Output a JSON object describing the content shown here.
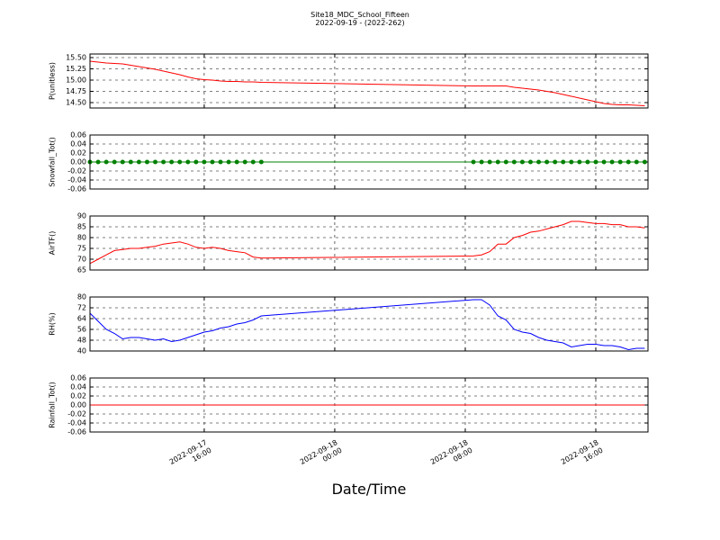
{
  "title": "Site18_MDC_School_Fifteen",
  "subtitle": "2022-09-19 - (2022-262)",
  "xlabel": "Date/Time",
  "xlim": [
    "2022-09-17 09:00",
    "2022-09-18 19:12"
  ],
  "xticks": [
    "2022-09-17 16:00",
    "2022-09-18 00:00",
    "2022-09-18 08:00",
    "2022-09-18 16:00"
  ],
  "chart_data": [
    {
      "type": "line",
      "ylabel": "P(unitless)",
      "ylim": [
        14.38,
        15.58
      ],
      "yticks": [
        {
          "value": 15.5,
          "label": "15.50"
        },
        15.25,
        {
          "value": 15,
          "label": "15.00"
        },
        14.75,
        {
          "value": 14.5,
          "label": "14.50"
        }
      ],
      "grid": true,
      "x": [
        "2022-09-17 09:00",
        "2022-09-17 09:30",
        "2022-09-17 10:00",
        "2022-09-17 10:30",
        "2022-09-17 11:00",
        "2022-09-17 11:30",
        "2022-09-17 12:00",
        "2022-09-17 12:30",
        "2022-09-17 13:00",
        "2022-09-17 13:30",
        "2022-09-17 14:00",
        "2022-09-17 14:30",
        "2022-09-17 15:00",
        "2022-09-17 15:30",
        "2022-09-17 16:00",
        "2022-09-17 16:30",
        "2022-09-17 17:00",
        "2022-09-17 17:30",
        "2022-09-17 18:00",
        "2022-09-17 18:30",
        "2022-09-17 19:00",
        "2022-09-17 19:30",
        "2022-09-18 08:30",
        "2022-09-18 09:00",
        "2022-09-18 09:30",
        "2022-09-18 10:00",
        "2022-09-18 10:30",
        "2022-09-18 11:00",
        "2022-09-18 11:30",
        "2022-09-18 12:00",
        "2022-09-18 12:30",
        "2022-09-18 13:00",
        "2022-09-18 13:30",
        "2022-09-18 14:00",
        "2022-09-18 14:30",
        "2022-09-18 15:00",
        "2022-09-18 15:30",
        "2022-09-18 16:00",
        "2022-09-18 16:30",
        "2022-09-18 17:00",
        "2022-09-18 17:30",
        "2022-09-18 18:00",
        "2022-09-18 18:30",
        "2022-09-18 19:00"
      ],
      "series": [
        {
          "color": "#ff0000",
          "marker": false,
          "values": [
            15.42,
            15.4,
            15.38,
            15.37,
            15.36,
            15.33,
            15.3,
            15.27,
            15.24,
            15.2,
            15.16,
            15.12,
            15.07,
            15.03,
            15.01,
            15.0,
            14.98,
            14.97,
            14.97,
            14.96,
            14.96,
            14.95,
            14.87,
            14.87,
            14.87,
            14.87,
            14.87,
            14.84,
            14.82,
            14.8,
            14.78,
            14.75,
            14.72,
            14.68,
            14.64,
            14.6,
            14.56,
            14.52,
            14.48,
            14.46,
            14.45,
            14.45,
            14.44,
            14.43
          ]
        }
      ]
    },
    {
      "type": "line",
      "ylabel": "Snowfall_Tot()",
      "ylim": [
        -0.06,
        0.06
      ],
      "yticks": [
        0.06,
        0.04,
        0.02,
        {
          "value": 0,
          "label": "0.00"
        },
        -0.02,
        -0.04,
        -0.06
      ],
      "grid": true,
      "x": [
        "2022-09-17 09:00",
        "2022-09-17 09:30",
        "2022-09-17 10:00",
        "2022-09-17 10:30",
        "2022-09-17 11:00",
        "2022-09-17 11:30",
        "2022-09-17 12:00",
        "2022-09-17 12:30",
        "2022-09-17 13:00",
        "2022-09-17 13:30",
        "2022-09-17 14:00",
        "2022-09-17 14:30",
        "2022-09-17 15:00",
        "2022-09-17 15:30",
        "2022-09-17 16:00",
        "2022-09-17 16:30",
        "2022-09-17 17:00",
        "2022-09-17 17:30",
        "2022-09-17 18:00",
        "2022-09-17 18:30",
        "2022-09-17 19:00",
        "2022-09-17 19:30",
        "2022-09-18 08:30",
        "2022-09-18 09:00",
        "2022-09-18 09:30",
        "2022-09-18 10:00",
        "2022-09-18 10:30",
        "2022-09-18 11:00",
        "2022-09-18 11:30",
        "2022-09-18 12:00",
        "2022-09-18 12:30",
        "2022-09-18 13:00",
        "2022-09-18 13:30",
        "2022-09-18 14:00",
        "2022-09-18 14:30",
        "2022-09-18 15:00",
        "2022-09-18 15:30",
        "2022-09-18 16:00",
        "2022-09-18 16:30",
        "2022-09-18 17:00",
        "2022-09-18 17:30",
        "2022-09-18 18:00",
        "2022-09-18 18:30",
        "2022-09-18 19:00"
      ],
      "series": [
        {
          "color": "#008000",
          "marker": true,
          "values": [
            0,
            0,
            0,
            0,
            0,
            0,
            0,
            0,
            0,
            0,
            0,
            0,
            0,
            0,
            0,
            0,
            0,
            0,
            0,
            0,
            0,
            0,
            0,
            0,
            0,
            0,
            0,
            0,
            0,
            0,
            0,
            0,
            0,
            0,
            0,
            0,
            0,
            0,
            0,
            0,
            0,
            0,
            0,
            0
          ]
        }
      ]
    },
    {
      "type": "line",
      "ylabel": "AirTF()",
      "ylim": [
        65,
        90
      ],
      "yticks": [
        90,
        85,
        80,
        75,
        70,
        65
      ],
      "grid": true,
      "x": [
        "2022-09-17 09:00",
        "2022-09-17 09:30",
        "2022-09-17 10:00",
        "2022-09-17 10:30",
        "2022-09-17 11:00",
        "2022-09-17 11:30",
        "2022-09-17 12:00",
        "2022-09-17 12:30",
        "2022-09-17 13:00",
        "2022-09-17 13:30",
        "2022-09-17 14:00",
        "2022-09-17 14:30",
        "2022-09-17 15:00",
        "2022-09-17 15:30",
        "2022-09-17 16:00",
        "2022-09-17 16:30",
        "2022-09-17 17:00",
        "2022-09-17 17:30",
        "2022-09-17 18:00",
        "2022-09-17 18:30",
        "2022-09-17 19:00",
        "2022-09-17 19:30",
        "2022-09-18 08:30",
        "2022-09-18 09:00",
        "2022-09-18 09:30",
        "2022-09-18 10:00",
        "2022-09-18 10:30",
        "2022-09-18 11:00",
        "2022-09-18 11:30",
        "2022-09-18 12:00",
        "2022-09-18 12:30",
        "2022-09-18 13:00",
        "2022-09-18 13:30",
        "2022-09-18 14:00",
        "2022-09-18 14:30",
        "2022-09-18 15:00",
        "2022-09-18 15:30",
        "2022-09-18 16:00",
        "2022-09-18 16:30",
        "2022-09-18 17:00",
        "2022-09-18 17:30",
        "2022-09-18 18:00",
        "2022-09-18 18:30",
        "2022-09-18 19:00"
      ],
      "series": [
        {
          "color": "#ff0000",
          "marker": false,
          "values": [
            68,
            70,
            72,
            74,
            74.5,
            75,
            75,
            75.5,
            76,
            77,
            77.5,
            78,
            77,
            75.5,
            75,
            75.5,
            75,
            74,
            73.5,
            73,
            71,
            70.5,
            71.5,
            72,
            73.5,
            77,
            77,
            80,
            81,
            82.5,
            83,
            84,
            85,
            86,
            87.5,
            87.5,
            87,
            86.5,
            86.5,
            86,
            86,
            85,
            85,
            84.5
          ]
        }
      ]
    },
    {
      "type": "line",
      "ylabel": "RH(%)",
      "ylim": [
        40,
        80
      ],
      "yticks": [
        80,
        72,
        64,
        56,
        48,
        40
      ],
      "grid": true,
      "x": [
        "2022-09-17 09:00",
        "2022-09-17 09:30",
        "2022-09-17 10:00",
        "2022-09-17 10:30",
        "2022-09-17 11:00",
        "2022-09-17 11:30",
        "2022-09-17 12:00",
        "2022-09-17 12:30",
        "2022-09-17 13:00",
        "2022-09-17 13:30",
        "2022-09-17 14:00",
        "2022-09-17 14:30",
        "2022-09-17 15:00",
        "2022-09-17 15:30",
        "2022-09-17 16:00",
        "2022-09-17 16:30",
        "2022-09-17 17:00",
        "2022-09-17 17:30",
        "2022-09-17 18:00",
        "2022-09-17 18:30",
        "2022-09-17 19:00",
        "2022-09-17 19:30",
        "2022-09-18 08:30",
        "2022-09-18 09:00",
        "2022-09-18 09:30",
        "2022-09-18 10:00",
        "2022-09-18 10:30",
        "2022-09-18 11:00",
        "2022-09-18 11:30",
        "2022-09-18 12:00",
        "2022-09-18 12:30",
        "2022-09-18 13:00",
        "2022-09-18 13:30",
        "2022-09-18 14:00",
        "2022-09-18 14:30",
        "2022-09-18 15:00",
        "2022-09-18 15:30",
        "2022-09-18 16:00",
        "2022-09-18 16:30",
        "2022-09-18 17:00",
        "2022-09-18 17:30",
        "2022-09-18 18:00",
        "2022-09-18 18:30",
        "2022-09-18 19:00"
      ],
      "series": [
        {
          "color": "#0000ff",
          "marker": false,
          "values": [
            68,
            62,
            56,
            53,
            49,
            50,
            50,
            49,
            48,
            49,
            47,
            48,
            50,
            52,
            54,
            55,
            57,
            58,
            60,
            61,
            63,
            66,
            78,
            78,
            74,
            66,
            63,
            56,
            54,
            53,
            50,
            48,
            47,
            46,
            43,
            44,
            45,
            45,
            44,
            44,
            43,
            41,
            42,
            42
          ]
        }
      ]
    },
    {
      "type": "line",
      "ylabel": "Rainfall_Tot()",
      "ylim": [
        -0.06,
        0.06
      ],
      "yticks": [
        0.06,
        0.04,
        0.02,
        {
          "value": 0,
          "label": "0.00"
        },
        -0.02,
        -0.04,
        -0.06
      ],
      "grid": true,
      "x": [
        "2022-09-17 09:00",
        "2022-09-17 09:30",
        "2022-09-17 10:00",
        "2022-09-17 10:30",
        "2022-09-17 11:00",
        "2022-09-17 11:30",
        "2022-09-17 12:00",
        "2022-09-17 12:30",
        "2022-09-17 13:00",
        "2022-09-17 13:30",
        "2022-09-17 14:00",
        "2022-09-17 14:30",
        "2022-09-17 15:00",
        "2022-09-17 15:30",
        "2022-09-17 16:00",
        "2022-09-17 16:30",
        "2022-09-17 17:00",
        "2022-09-17 17:30",
        "2022-09-17 18:00",
        "2022-09-17 18:30",
        "2022-09-17 19:00",
        "2022-09-17 19:30",
        "2022-09-18 08:30",
        "2022-09-18 09:00",
        "2022-09-18 09:30",
        "2022-09-18 10:00",
        "2022-09-18 10:30",
        "2022-09-18 11:00",
        "2022-09-18 11:30",
        "2022-09-18 12:00",
        "2022-09-18 12:30",
        "2022-09-18 13:00",
        "2022-09-18 13:30",
        "2022-09-18 14:00",
        "2022-09-18 14:30",
        "2022-09-18 15:00",
        "2022-09-18 15:30",
        "2022-09-18 16:00",
        "2022-09-18 16:30",
        "2022-09-18 17:00",
        "2022-09-18 17:30",
        "2022-09-18 18:00",
        "2022-09-18 18:30",
        "2022-09-18 19:00"
      ],
      "series": [
        {
          "color": "#ff0000",
          "marker": false,
          "values": [
            0,
            0,
            0,
            0,
            0,
            0,
            0,
            0,
            0,
            0,
            0,
            0,
            0,
            0,
            0,
            0,
            0,
            0,
            0,
            0,
            0,
            0,
            0,
            0,
            0,
            0,
            0,
            0,
            0,
            0,
            0,
            0,
            0,
            0,
            0,
            0,
            0,
            0,
            0,
            0,
            0,
            0,
            0,
            0
          ]
        }
      ]
    }
  ]
}
